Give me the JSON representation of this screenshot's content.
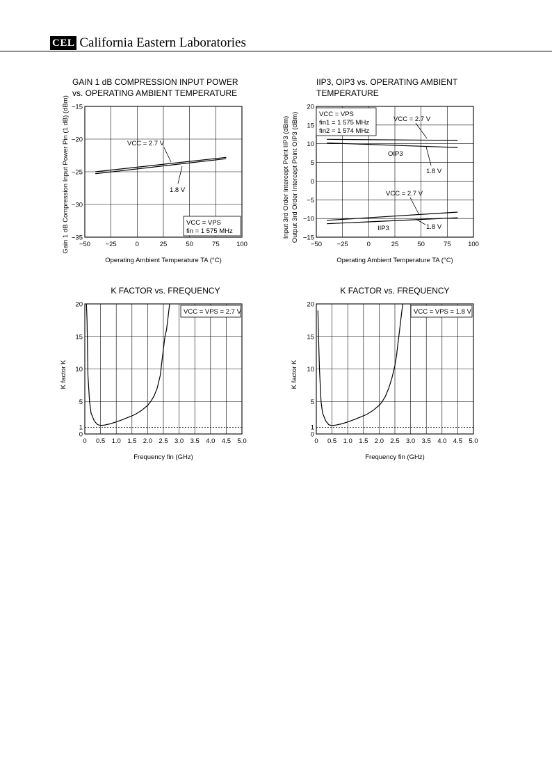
{
  "header": {
    "logo_text": "CEL",
    "company": "California Eastern Laboratories"
  },
  "chart_data": [
    {
      "type": "line",
      "title": [
        "GAIN 1 dB COMPRESSION INPUT POWER",
        "vs. OPERATING AMBIENT TEMPERATURE"
      ],
      "xlabel": "Operating Ambient Temperature  TA (°C)",
      "ylabel": "Gain 1 dB Compression Input Power  Pin (1 dB) (dBm)",
      "xlim": [
        -50,
        100
      ],
      "ylim": [
        -35,
        -15
      ],
      "xticks": [
        -50,
        -25,
        0,
        25,
        50,
        75,
        100
      ],
      "yticks": [
        -35,
        -30,
        -25,
        -20,
        -15
      ],
      "xtick_labels": [
        "−50",
        "−25",
        "0",
        "25",
        "50",
        "75",
        "100"
      ],
      "ytick_labels": [
        "−35",
        "−30",
        "−25",
        "−20",
        "−15"
      ],
      "grid": true,
      "series": [
        {
          "name": "VCC = 2.7 V",
          "x": [
            -40,
            85
          ],
          "y": [
            -25.0,
            -22.8
          ]
        },
        {
          "name": "1.8 V",
          "x": [
            -40,
            85
          ],
          "y": [
            -25.3,
            -23.0
          ]
        }
      ],
      "annotations": [
        "VCC = 2.7 V",
        "1.8 V"
      ],
      "legend_box": [
        "VCC = VPS",
        "fin = 1 575 MHz"
      ]
    },
    {
      "type": "line",
      "title": [
        "IIP3, OIP3 vs. OPERATING AMBIENT",
        "TEMPERATURE"
      ],
      "xlabel": "Operating Ambient Temperature  TA (°C)",
      "ylabel": [
        "Input 3rd Order Intercept Point  IIP3 (dBm)",
        "Output 3rd Order Intercept Point  OIP3 (dBm)"
      ],
      "xlim": [
        -50,
        100
      ],
      "ylim": [
        -15,
        20
      ],
      "xticks": [
        -50,
        -25,
        0,
        25,
        50,
        75,
        100
      ],
      "yticks": [
        -15,
        -10,
        -5,
        0,
        5,
        10,
        15,
        20
      ],
      "xtick_labels": [
        "−50",
        "−25",
        "0",
        "25",
        "50",
        "75",
        "100"
      ],
      "ytick_labels": [
        "−15",
        "−10",
        "−5",
        "0",
        "5",
        "10",
        "15",
        "20"
      ],
      "grid": true,
      "series": [
        {
          "name": "OIP3 VCC = 2.7 V",
          "x": [
            -40,
            85
          ],
          "y": [
            11.2,
            10.9
          ]
        },
        {
          "name": "OIP3 1.8 V",
          "x": [
            -40,
            85
          ],
          "y": [
            10.2,
            9.0
          ]
        },
        {
          "name": "IIP3 VCC = 2.7 V",
          "x": [
            -40,
            85
          ],
          "y": [
            -10.5,
            -8.3
          ]
        },
        {
          "name": "IIP3 1.8 V",
          "x": [
            -40,
            85
          ],
          "y": [
            -11.4,
            -9.8
          ]
        }
      ],
      "annotations": [
        "VCC = 2.7 V",
        "OIP3",
        "1.8 V",
        "VCC = 2.7 V",
        "IIP3",
        "1.8 V"
      ],
      "legend_box": [
        "VCC = VPS",
        "fin1 = 1 575 MHz",
        "fin2 = 1 574 MHz"
      ]
    },
    {
      "type": "line",
      "title": "K FACTOR vs. FREQUENCY",
      "xlabel": "Frequency  fin (GHz)",
      "ylabel": "K factor  K",
      "xlim": [
        0,
        5
      ],
      "ylim": [
        0,
        20
      ],
      "xticks": [
        0,
        0.5,
        1,
        1.5,
        2,
        2.5,
        3,
        3.5,
        4,
        4.5,
        5
      ],
      "yticks": [
        0,
        5,
        10,
        15,
        20
      ],
      "xtick_labels": [
        "0",
        "0.5",
        "1.0",
        "1.5",
        "2.0",
        "2.5",
        "3.0",
        "3.5",
        "4.0",
        "4.5",
        "5.0"
      ],
      "ytick_labels": [
        "0",
        "5",
        "10",
        "15",
        "20"
      ],
      "extra_ytick_label": "1",
      "grid": true,
      "reference_line_y": 1,
      "legend_box": [
        "VCC = VPS = 2.7 V"
      ],
      "series": [
        {
          "name": "VCC = VPS = 2.7 V",
          "x": [
            0.05,
            0.07,
            0.1,
            0.15,
            0.2,
            0.3,
            0.4,
            0.5,
            0.6,
            0.8,
            1.0,
            1.2,
            1.4,
            1.6,
            1.8,
            2.0,
            2.1,
            2.2,
            2.3,
            2.4,
            2.45,
            2.5,
            2.55,
            2.6,
            2.65,
            2.7
          ],
          "y": [
            20,
            17.5,
            9.0,
            5.0,
            3.2,
            2.0,
            1.45,
            1.3,
            1.35,
            1.55,
            1.85,
            2.2,
            2.6,
            3.0,
            3.6,
            4.4,
            5.0,
            5.8,
            7.0,
            9.0,
            11.0,
            13.0,
            15.0,
            16.0,
            18.0,
            20
          ]
        }
      ]
    },
    {
      "type": "line",
      "title": "K FACTOR vs. FREQUENCY",
      "xlabel": "Frequency  fin (GHz)",
      "ylabel": "K factor  K",
      "xlim": [
        0,
        5
      ],
      "ylim": [
        0,
        20
      ],
      "xticks": [
        0,
        0.5,
        1,
        1.5,
        2,
        2.5,
        3,
        3.5,
        4,
        4.5,
        5
      ],
      "yticks": [
        0,
        5,
        10,
        15,
        20
      ],
      "xtick_labels": [
        "0",
        "0.5",
        "1.0",
        "1.5",
        "2.0",
        "2.5",
        "3.0",
        "3.5",
        "4.0",
        "4.5",
        "5.0"
      ],
      "ytick_labels": [
        "0",
        "5",
        "10",
        "15",
        "20"
      ],
      "extra_ytick_label": "1",
      "grid": true,
      "reference_line_y": 1,
      "legend_box": [
        "VCC = VPS = 1.8 V"
      ],
      "series": [
        {
          "name": "VCC = VPS = 1.8 V",
          "x": [
            0.05,
            0.07,
            0.1,
            0.15,
            0.2,
            0.3,
            0.4,
            0.5,
            0.6,
            0.8,
            1.0,
            1.2,
            1.4,
            1.6,
            1.8,
            2.0,
            2.1,
            2.2,
            2.3,
            2.4,
            2.5,
            2.55,
            2.6,
            2.65,
            2.7,
            2.75
          ],
          "y": [
            19,
            15.0,
            10.0,
            5.0,
            3.2,
            2.0,
            1.4,
            1.3,
            1.35,
            1.55,
            1.85,
            2.2,
            2.6,
            3.0,
            3.6,
            4.4,
            5.0,
            5.8,
            7.0,
            8.5,
            10.5,
            12.0,
            14.0,
            16.0,
            18.0,
            20
          ]
        }
      ]
    }
  ]
}
